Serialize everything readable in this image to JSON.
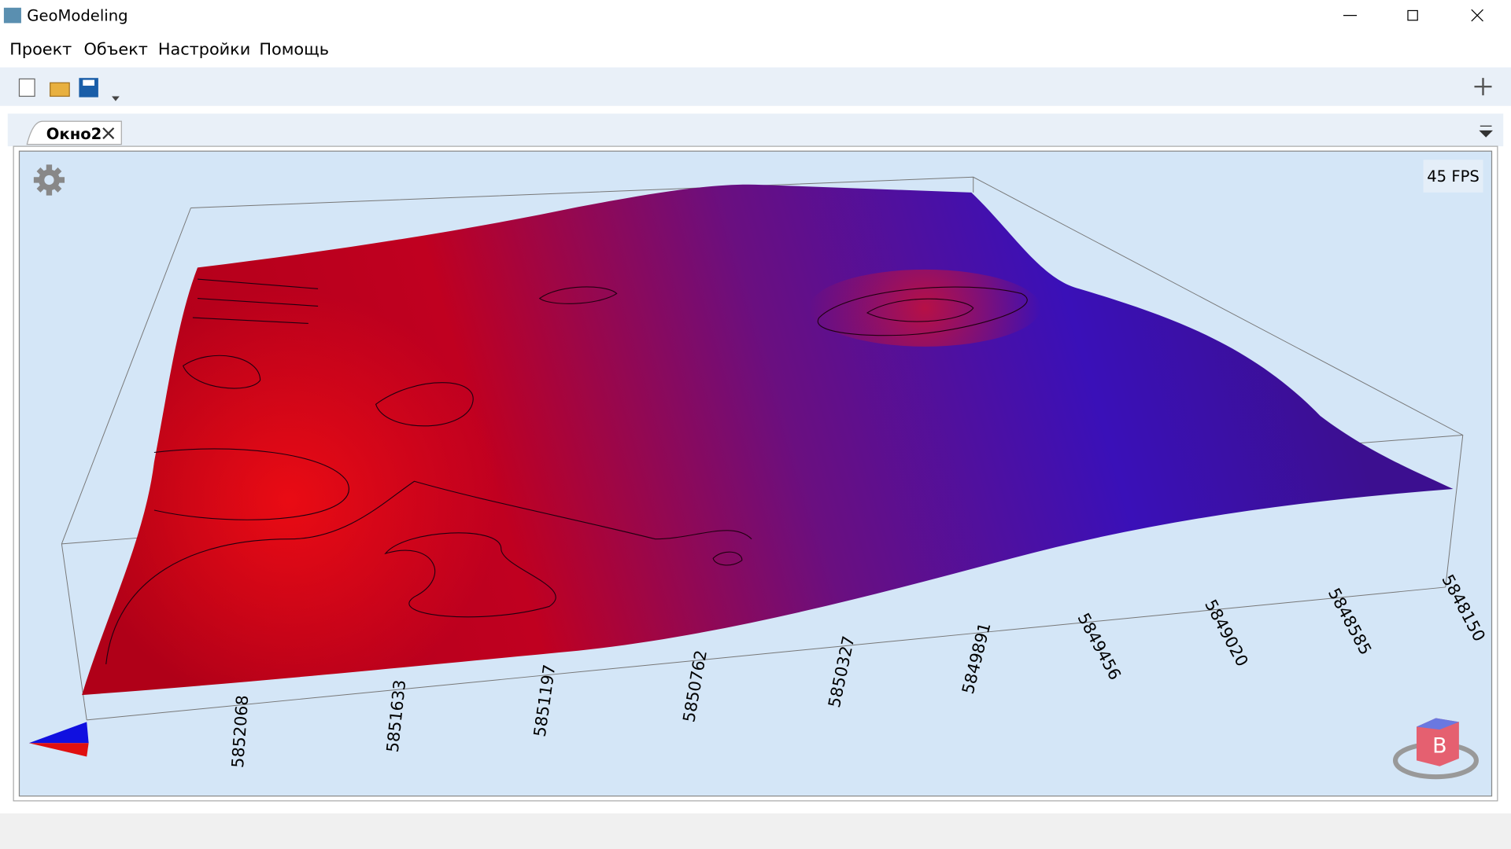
{
  "window": {
    "title": "GeoModeling"
  },
  "menu": [
    "Проект",
    "Объект",
    "Настройки",
    "Помощь"
  ],
  "tab": {
    "label": "Окно2"
  },
  "viewport": {
    "fps": "45 FPS",
    "axis_labels": [
      "5852068",
      "5851633",
      "5851197",
      "5850762",
      "5850327",
      "5849891",
      "5849456",
      "5849020",
      "5848585",
      "5848150"
    ],
    "view_cube_label": "B"
  }
}
